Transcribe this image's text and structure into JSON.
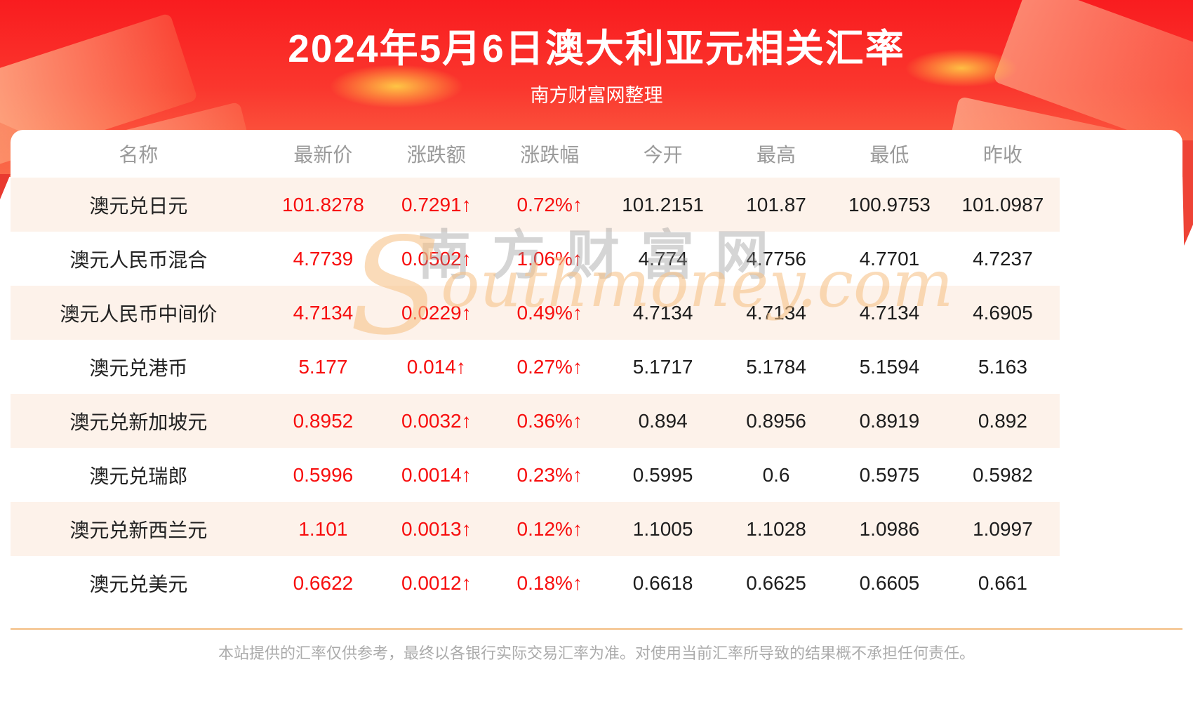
{
  "header": {
    "title": "2024年5月6日澳大利亚元相关汇率",
    "subtitle": "南方财富网整理"
  },
  "table": {
    "columns": [
      "名称",
      "最新价",
      "涨跌额",
      "涨跌幅",
      "今开",
      "最高",
      "最低",
      "昨收"
    ],
    "rows": [
      {
        "name": "澳元兑日元",
        "latest": "101.8278",
        "change": "0.7291↑",
        "change_pct": "0.72%↑",
        "open": "101.2151",
        "high": "101.87",
        "low": "100.9753",
        "prev_close": "101.0987"
      },
      {
        "name": "澳元人民币混合",
        "latest": "4.7739",
        "change": "0.0502↑",
        "change_pct": "1.06%↑",
        "open": "4.774",
        "high": "4.7756",
        "low": "4.7701",
        "prev_close": "4.7237"
      },
      {
        "name": "澳元人民币中间价",
        "latest": "4.7134",
        "change": "0.0229↑",
        "change_pct": "0.49%↑",
        "open": "4.7134",
        "high": "4.7134",
        "low": "4.7134",
        "prev_close": "4.6905"
      },
      {
        "name": "澳元兑港币",
        "latest": "5.177",
        "change": "0.014↑",
        "change_pct": "0.27%↑",
        "open": "5.1717",
        "high": "5.1784",
        "low": "5.1594",
        "prev_close": "5.163"
      },
      {
        "name": "澳元兑新加坡元",
        "latest": "0.8952",
        "change": "0.0032↑",
        "change_pct": "0.36%↑",
        "open": "0.894",
        "high": "0.8956",
        "low": "0.8919",
        "prev_close": "0.892"
      },
      {
        "name": "澳元兑瑞郎",
        "latest": "0.5996",
        "change": "0.0014↑",
        "change_pct": "0.23%↑",
        "open": "0.5995",
        "high": "0.6",
        "low": "0.5975",
        "prev_close": "0.5982"
      },
      {
        "name": "澳元兑新西兰元",
        "latest": "1.101",
        "change": "0.0013↑",
        "change_pct": "0.12%↑",
        "open": "1.1005",
        "high": "1.1028",
        "low": "1.0986",
        "prev_close": "1.0997"
      },
      {
        "name": "澳元兑美元",
        "latest": "0.6622",
        "change": "0.0012↑",
        "change_pct": "0.18%↑",
        "open": "0.6618",
        "high": "0.6625",
        "low": "0.6605",
        "prev_close": "0.661"
      }
    ]
  },
  "watermark": {
    "cn": "南方财富网",
    "en_initial": "S",
    "en_rest": "outhmoney.com"
  },
  "footer": {
    "disclaimer": "本站提供的汇率仅供参考，最终以各银行实际交易汇率为准。对使用当前汇率所导致的结果概不承担任何责任。"
  },
  "colors": {
    "banner_red_top": "#f91c1f",
    "banner_red_bottom": "#fc6a48",
    "row_stripe": "#fdf2ea",
    "value_red": "#f70e0e",
    "value_black": "#1d1d1d",
    "header_gray": "#9a9a9a",
    "divider_orange": "#f3bc80"
  }
}
